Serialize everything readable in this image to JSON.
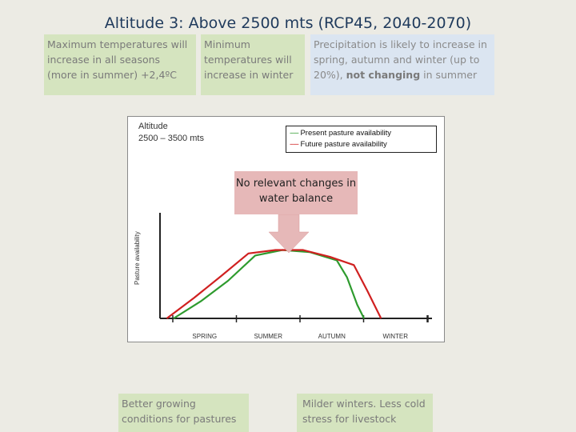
{
  "slide": {
    "title": "Altitude 3: Above 2500 mts (RCP45, 2040-2070)"
  },
  "boxes": {
    "max_temp": "Maximum temperatures will increase in all seasons (more in summer) +2,4ºC",
    "min_temp": "Minimum temperatures will increase in winter",
    "precip_main": "Precipitation is likely to increase in spring, autumn and winter (up to 20%), ",
    "precip_bold": "not changing",
    "precip_end": " in summer",
    "growing": "Better growing conditions for pastures",
    "milder": "Milder winters. Less cold stress for livestock",
    "callout": "No relevant changes in water balance"
  },
  "chart_data": {
    "type": "line",
    "title": "Altitude",
    "subtitle": "2500 – 3500 mts",
    "ylabel": "Pasture availability",
    "xlabel": "",
    "categories": [
      "SPRING",
      "SUMMER",
      "AUTUMN",
      "WINTER"
    ],
    "legend": {
      "present_dash": "-----",
      "present_label": "Present pasture availability",
      "future_dash": "-----",
      "future_label": "Future pasture availability",
      "placement": "top-right"
    },
    "series": [
      {
        "name": "Present pasture availability",
        "color": "#2e9b2e",
        "points": [
          [
            0.2,
            0.0
          ],
          [
            0.6,
            0.25
          ],
          [
            1.0,
            0.55
          ],
          [
            1.4,
            0.92
          ],
          [
            1.8,
            1.0
          ],
          [
            2.2,
            0.97
          ],
          [
            2.6,
            0.85
          ],
          [
            2.75,
            0.6
          ],
          [
            2.9,
            0.2
          ],
          [
            3.0,
            0.0
          ]
        ]
      },
      {
        "name": "Future pasture availability",
        "color": "#d02020",
        "points": [
          [
            0.1,
            0.0
          ],
          [
            0.5,
            0.3
          ],
          [
            0.9,
            0.62
          ],
          [
            1.3,
            0.95
          ],
          [
            1.7,
            1.0
          ],
          [
            2.1,
            1.0
          ],
          [
            2.5,
            0.9
          ],
          [
            2.85,
            0.78
          ],
          [
            3.05,
            0.4
          ],
          [
            3.25,
            0.0
          ]
        ]
      }
    ],
    "ylim": [
      0,
      1.1
    ],
    "grid": false
  }
}
